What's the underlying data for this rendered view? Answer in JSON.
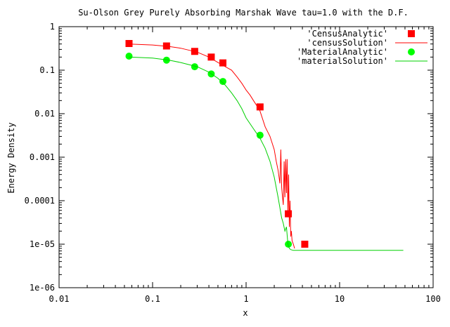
{
  "chart_data": {
    "type": "scatter",
    "title": "Su-Olson Grey Purely Absorbing Marshak Wave tau=1.0 with the D.F.",
    "xlabel": "x",
    "ylabel": "Energy Density",
    "x_scale": "log",
    "y_scale": "log",
    "xlim": [
      0.01,
      100
    ],
    "ylim": [
      1e-06,
      1
    ],
    "grid": false,
    "legend_position": "top-right",
    "x_ticks": [
      {
        "value": 0.01,
        "label": "0.01"
      },
      {
        "value": 0.1,
        "label": "0.1"
      },
      {
        "value": 1,
        "label": "1"
      },
      {
        "value": 10,
        "label": "10"
      },
      {
        "value": 100,
        "label": "100"
      }
    ],
    "y_ticks": [
      {
        "value": 1e-06,
        "label": "1e-06"
      },
      {
        "value": 1e-05,
        "label": "1e-05"
      },
      {
        "value": 0.0001,
        "label": "0.0001"
      },
      {
        "value": 0.001,
        "label": "0.001"
      },
      {
        "value": 0.01,
        "label": "0.01"
      },
      {
        "value": 0.1,
        "label": "0.1"
      },
      {
        "value": 1,
        "label": "1"
      }
    ],
    "series": [
      {
        "name": "'CensusAnalytic'",
        "kind": "points",
        "marker": "square",
        "color": "#ff0000",
        "x": [
          0.056,
          0.141,
          0.282,
          0.424,
          0.565,
          1.41,
          2.83,
          4.24
        ],
        "y": [
          0.41,
          0.36,
          0.27,
          0.2,
          0.147,
          0.0143,
          5e-05,
          1e-05
        ]
      },
      {
        "name": "'censusSolution'",
        "kind": "line",
        "color": "#ff0000",
        "x": [
          0.056,
          0.1,
          0.15,
          0.2,
          0.3,
          0.4,
          0.5,
          0.6,
          0.7,
          0.8,
          0.9,
          1.0,
          1.1,
          1.2,
          1.4,
          1.6,
          1.8,
          2.0,
          2.1,
          2.2,
          2.3,
          2.35,
          2.4,
          2.45,
          2.5,
          2.55,
          2.6,
          2.65,
          2.7,
          2.75,
          2.8,
          2.85,
          2.9,
          2.95,
          3.0,
          3.05,
          3.1,
          3.2,
          3.3
        ],
        "y": [
          0.4,
          0.38,
          0.35,
          0.32,
          0.26,
          0.2,
          0.15,
          0.12,
          0.1,
          0.07,
          0.05,
          0.035,
          0.027,
          0.02,
          0.012,
          0.005,
          0.003,
          0.0015,
          0.0008,
          0.0005,
          0.00025,
          0.0015,
          0.0002,
          0.00012,
          8e-05,
          0.0008,
          0.00012,
          0.0009,
          0.00015,
          0.0009,
          5e-05,
          0.0004,
          2.5e-05,
          0.0001,
          1.5e-05,
          2e-05,
          1.2e-05,
          1e-05,
          8e-06
        ]
      },
      {
        "name": "'MaterialAnalytic'",
        "kind": "points",
        "marker": "circle",
        "color": "#00ff00",
        "x": [
          0.056,
          0.141,
          0.282,
          0.424,
          0.565,
          1.41,
          2.83
        ],
        "y": [
          0.21,
          0.17,
          0.12,
          0.082,
          0.055,
          0.0032,
          1e-05
        ]
      },
      {
        "name": "'materialSolution'",
        "kind": "line",
        "color": "#00d000",
        "x": [
          0.056,
          0.1,
          0.15,
          0.2,
          0.3,
          0.4,
          0.5,
          0.6,
          0.7,
          0.8,
          0.9,
          1.0,
          1.2,
          1.4,
          1.6,
          1.8,
          2.0,
          2.2,
          2.4,
          2.5,
          2.6,
          2.7,
          2.8,
          2.9,
          3.0,
          3.2,
          3.5,
          4.0,
          5.0,
          7.0,
          10.0,
          20.0,
          30.0,
          48.0
        ],
        "y": [
          0.2,
          0.19,
          0.17,
          0.15,
          0.12,
          0.09,
          0.065,
          0.045,
          0.03,
          0.02,
          0.013,
          0.008,
          0.0045,
          0.0028,
          0.0016,
          0.0008,
          0.00035,
          0.00012,
          4e-05,
          3e-05,
          2e-05,
          2.5e-05,
          1e-05,
          8e-06,
          7.5e-06,
          7.2e-06,
          7.2e-06,
          7.2e-06,
          7.2e-06,
          7.2e-06,
          7.2e-06,
          7.2e-06,
          7.2e-06,
          7.2e-06
        ]
      }
    ]
  }
}
